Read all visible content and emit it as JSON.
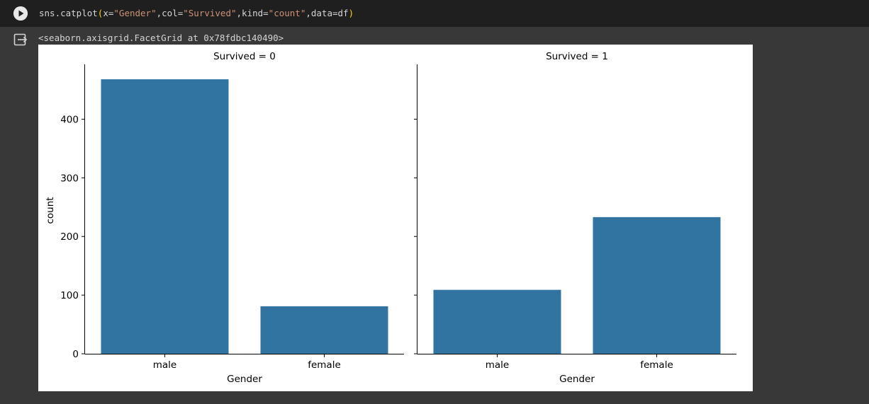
{
  "cell": {
    "code_tokens": [
      {
        "t": "sns.catplot",
        "c": ""
      },
      {
        "t": "(",
        "c": "paren"
      },
      {
        "t": "x=",
        "c": ""
      },
      {
        "t": "\"Gender\"",
        "c": "str"
      },
      {
        "t": ",col=",
        "c": ""
      },
      {
        "t": "\"Survived\"",
        "c": "str"
      },
      {
        "t": ",kind=",
        "c": ""
      },
      {
        "t": "\"count\"",
        "c": "str"
      },
      {
        "t": ",data=df",
        "c": ""
      },
      {
        "t": ")",
        "c": "paren"
      }
    ],
    "run_icon": "play-icon"
  },
  "output": {
    "icon": "output-redirect-icon",
    "repr": "<seaborn.axisgrid.FacetGrid at 0x78fdbc140490>"
  },
  "colors": {
    "bar": "#3274a1",
    "cell_bg": "#1f1f1f",
    "page_bg": "#383838",
    "string": "#ce9178",
    "paren": "#ffd700"
  },
  "chart_data": [
    {
      "type": "bar",
      "title": "Survived = 0",
      "categories": [
        "male",
        "female"
      ],
      "values": [
        468,
        81
      ],
      "xlabel": "Gender",
      "ylabel": "count",
      "ylim": [
        0,
        491
      ],
      "yticks": [
        "0",
        "100",
        "200",
        "300",
        "400"
      ],
      "grid": false
    },
    {
      "type": "bar",
      "title": "Survived = 1",
      "categories": [
        "male",
        "female"
      ],
      "values": [
        109,
        233
      ],
      "xlabel": "Gender",
      "ylabel": "",
      "ylim": [
        0,
        491
      ],
      "yticks": [],
      "grid": false
    }
  ]
}
